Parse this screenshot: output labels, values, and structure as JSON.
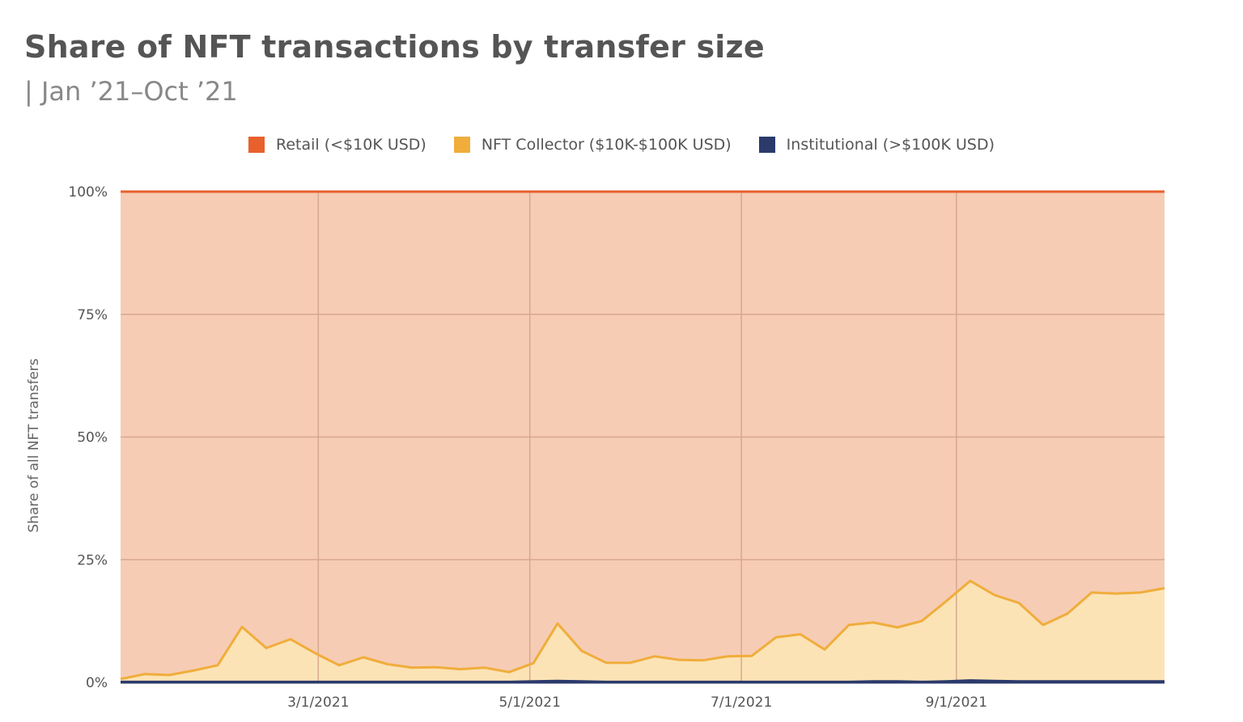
{
  "chart_data": {
    "type": "area",
    "stacked": true,
    "title": "Share of NFT transactions by transfer size",
    "subtitle": "| Jan ’21–Oct ’21",
    "ylabel": "Share of all NFT transfers",
    "ylim": [
      0,
      100
    ],
    "yticks": [
      0,
      25,
      50,
      75,
      100
    ],
    "ytick_labels": [
      "0%",
      "25%",
      "50%",
      "75%",
      "100%"
    ],
    "xlim": [
      "2021-01-03",
      "2021-10-31"
    ],
    "xticks": [
      "2021-03-01",
      "2021-05-01",
      "2021-07-01",
      "2021-09-01"
    ],
    "xtick_labels": [
      "3/1/2021",
      "5/1/2021",
      "7/1/2021",
      "9/1/2021"
    ],
    "grid": true,
    "legend_position": "top-center",
    "x": [
      "2021-01-03",
      "2021-01-10",
      "2021-01-17",
      "2021-01-24",
      "2021-01-31",
      "2021-02-07",
      "2021-02-14",
      "2021-02-21",
      "2021-02-28",
      "2021-03-07",
      "2021-03-14",
      "2021-03-21",
      "2021-03-28",
      "2021-04-04",
      "2021-04-11",
      "2021-04-18",
      "2021-04-25",
      "2021-05-02",
      "2021-05-09",
      "2021-05-16",
      "2021-05-23",
      "2021-05-30",
      "2021-06-06",
      "2021-06-13",
      "2021-06-20",
      "2021-06-27",
      "2021-07-04",
      "2021-07-11",
      "2021-07-18",
      "2021-07-25",
      "2021-08-01",
      "2021-08-08",
      "2021-08-15",
      "2021-08-22",
      "2021-08-29",
      "2021-09-05",
      "2021-09-12",
      "2021-09-19",
      "2021-09-26",
      "2021-10-03",
      "2021-10-10",
      "2021-10-17",
      "2021-10-24",
      "2021-10-31"
    ],
    "series": [
      {
        "name": "Institutional (>$100K USD)",
        "color": "#2b3a6b",
        "values": [
          0.1,
          0.1,
          0.1,
          0.1,
          0.1,
          0.1,
          0.1,
          0.1,
          0.1,
          0.1,
          0.1,
          0.1,
          0.1,
          0.1,
          0.1,
          0.1,
          0.1,
          0.2,
          0.3,
          0.2,
          0.1,
          0.1,
          0.1,
          0.1,
          0.1,
          0.1,
          0.1,
          0.1,
          0.1,
          0.1,
          0.1,
          0.2,
          0.2,
          0.1,
          0.2,
          0.4,
          0.3,
          0.2,
          0.2,
          0.2,
          0.2,
          0.2,
          0.2,
          0.2
        ]
      },
      {
        "name": "NFT Collector ($10K-$100K USD)",
        "color": "#f0ad3c",
        "values": [
          0.6,
          1.6,
          1.4,
          2.3,
          3.4,
          11.2,
          6.9,
          8.7,
          5.9,
          3.4,
          5.0,
          3.6,
          2.9,
          3.0,
          2.6,
          2.9,
          2.0,
          3.7,
          11.7,
          6.2,
          3.9,
          3.9,
          5.2,
          4.5,
          4.4,
          5.2,
          5.3,
          9.1,
          9.7,
          6.6,
          11.6,
          12.0,
          11.0,
          12.4,
          16.3,
          20.3,
          17.5,
          16.0,
          11.5,
          13.8,
          18.1,
          17.9,
          18.1,
          19.0
        ]
      },
      {
        "name": "Retail (<$10K USD)",
        "color": "#e8602c",
        "values": [
          99.3,
          98.3,
          98.5,
          97.6,
          96.5,
          88.7,
          93.0,
          91.2,
          94.0,
          96.5,
          94.9,
          96.3,
          97.0,
          96.9,
          97.3,
          97.0,
          97.9,
          96.1,
          88.0,
          93.6,
          96.0,
          96.0,
          94.7,
          95.4,
          95.5,
          94.7,
          94.6,
          90.8,
          90.2,
          93.3,
          88.3,
          87.8,
          88.8,
          87.5,
          83.5,
          79.3,
          82.2,
          83.8,
          88.3,
          86.0,
          81.7,
          81.9,
          81.7,
          80.8
        ]
      }
    ]
  }
}
